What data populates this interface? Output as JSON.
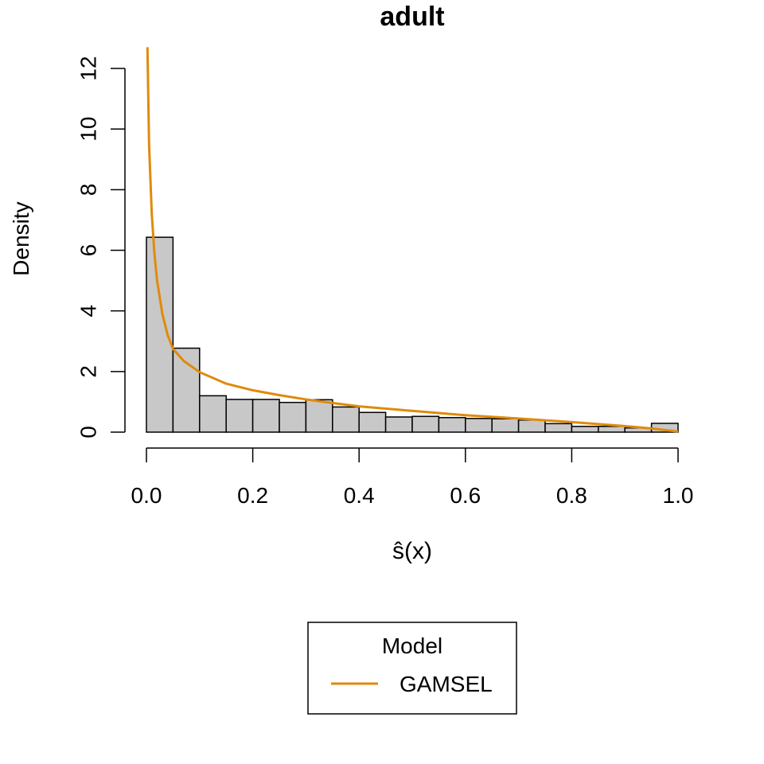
{
  "chart_data": {
    "type": "bar",
    "title": "adult",
    "xlabel": "ŝ(x)",
    "ylabel": "Density",
    "xlim": [
      0,
      1
    ],
    "ylim": [
      0,
      12
    ],
    "x_ticks": [
      "0.0",
      "0.2",
      "0.4",
      "0.6",
      "0.8",
      "1.0"
    ],
    "y_ticks": [
      "0",
      "2",
      "4",
      "6",
      "8",
      "10",
      "12"
    ],
    "grid": false,
    "bin_width": 0.05,
    "bin_starts": [
      0.0,
      0.05,
      0.1,
      0.15,
      0.2,
      0.25,
      0.3,
      0.35,
      0.4,
      0.45,
      0.5,
      0.55,
      0.6,
      0.65,
      0.7,
      0.75,
      0.8,
      0.85,
      0.9,
      0.95
    ],
    "values": [
      6.43,
      2.77,
      1.2,
      1.08,
      1.08,
      0.98,
      1.07,
      0.83,
      0.65,
      0.5,
      0.52,
      0.48,
      0.45,
      0.44,
      0.4,
      0.28,
      0.19,
      0.19,
      0.14,
      0.29
    ],
    "bar_color": "#c8c8c8",
    "series": [
      {
        "name": "GAMSEL",
        "type": "line",
        "color": "#e08a0b",
        "x": [
          0.002,
          0.005,
          0.01,
          0.015,
          0.02,
          0.03,
          0.04,
          0.05,
          0.07,
          0.1,
          0.15,
          0.2,
          0.25,
          0.3,
          0.35,
          0.4,
          0.5,
          0.6,
          0.7,
          0.8,
          0.9,
          0.95,
          0.98,
          1.0
        ],
        "y": [
          12.7,
          9.5,
          7.2,
          5.9,
          5.0,
          3.9,
          3.2,
          2.75,
          2.35,
          1.98,
          1.6,
          1.38,
          1.22,
          1.08,
          0.96,
          0.85,
          0.7,
          0.56,
          0.45,
          0.33,
          0.2,
          0.12,
          0.06,
          0.02
        ]
      }
    ],
    "legend": {
      "title": "Model",
      "placement": "bottom-center",
      "entries": [
        "GAMSEL"
      ]
    }
  }
}
